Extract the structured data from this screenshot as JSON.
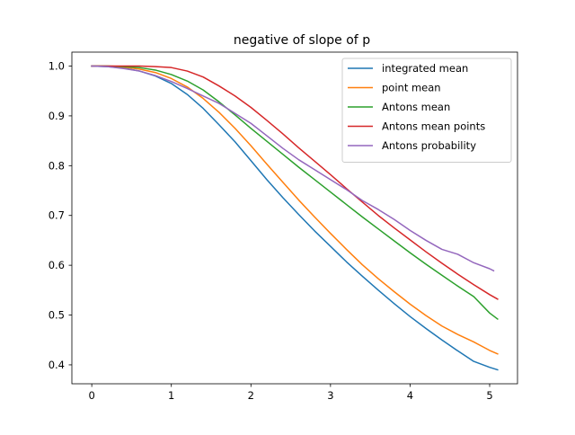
{
  "chart_data": {
    "type": "line",
    "title": "negative of slope of p",
    "xlabel": "",
    "ylabel": "",
    "xlim": [
      -0.25,
      5.35
    ],
    "ylim": [
      0.362,
      1.028
    ],
    "xticks": [
      0,
      1,
      2,
      3,
      4,
      5
    ],
    "xtick_labels": [
      "0",
      "1",
      "2",
      "3",
      "4",
      "5"
    ],
    "yticks": [
      0.4,
      0.5,
      0.6,
      0.7,
      0.8,
      0.9,
      1.0
    ],
    "ytick_labels": [
      "0.4",
      "0.5",
      "0.6",
      "0.7",
      "0.8",
      "0.9",
      "1.0"
    ],
    "grid": false,
    "legend_position": "top-right",
    "series": [
      {
        "name": "integrated mean",
        "color": "#1f77b4",
        "x": [
          0,
          0.2,
          0.4,
          0.6,
          0.8,
          1.0,
          1.2,
          1.4,
          1.6,
          1.8,
          2.0,
          2.2,
          2.4,
          2.6,
          2.8,
          3.0,
          3.2,
          3.4,
          3.6,
          3.8,
          4.0,
          4.2,
          4.4,
          4.6,
          4.8,
          5.0,
          5.1
        ],
        "y": [
          1.0,
          0.999,
          0.996,
          0.99,
          0.98,
          0.965,
          0.943,
          0.915,
          0.882,
          0.848,
          0.81,
          0.772,
          0.736,
          0.702,
          0.669,
          0.638,
          0.607,
          0.578,
          0.55,
          0.523,
          0.497,
          0.473,
          0.45,
          0.428,
          0.407,
          0.395,
          0.39
        ]
      },
      {
        "name": "point mean",
        "color": "#ff7f0e",
        "x": [
          0,
          0.2,
          0.4,
          0.6,
          0.8,
          1.0,
          1.2,
          1.4,
          1.6,
          1.8,
          2.0,
          2.2,
          2.4,
          2.6,
          2.8,
          3.0,
          3.2,
          3.4,
          3.6,
          3.8,
          4.0,
          4.2,
          4.4,
          4.6,
          4.8,
          5.0,
          5.1
        ],
        "y": [
          1.0,
          1.0,
          0.998,
          0.994,
          0.987,
          0.975,
          0.958,
          0.935,
          0.907,
          0.875,
          0.84,
          0.803,
          0.767,
          0.731,
          0.697,
          0.664,
          0.632,
          0.601,
          0.573,
          0.547,
          0.522,
          0.499,
          0.478,
          0.461,
          0.446,
          0.429,
          0.422
        ]
      },
      {
        "name": "Antons mean",
        "color": "#2ca02c",
        "x": [
          0,
          0.2,
          0.4,
          0.6,
          0.8,
          1.0,
          1.2,
          1.4,
          1.6,
          1.8,
          2.0,
          2.2,
          2.4,
          2.6,
          2.8,
          3.0,
          3.2,
          3.4,
          3.6,
          3.8,
          4.0,
          4.2,
          4.4,
          4.6,
          4.8,
          5.0,
          5.1
        ],
        "y": [
          1.0,
          1.0,
          0.999,
          0.997,
          0.992,
          0.983,
          0.97,
          0.952,
          0.928,
          0.902,
          0.875,
          0.849,
          0.823,
          0.797,
          0.772,
          0.747,
          0.722,
          0.697,
          0.673,
          0.649,
          0.625,
          0.602,
          0.58,
          0.558,
          0.537,
          0.504,
          0.492
        ]
      },
      {
        "name": "Antons mean points",
        "color": "#d62728",
        "x": [
          0,
          0.2,
          0.4,
          0.6,
          0.8,
          1.0,
          1.2,
          1.4,
          1.6,
          1.8,
          2.0,
          2.2,
          2.4,
          2.6,
          2.8,
          3.0,
          3.2,
          3.4,
          3.6,
          3.8,
          4.0,
          4.2,
          4.4,
          4.6,
          4.8,
          5.0,
          5.1
        ],
        "y": [
          1.0,
          1.0,
          1.0,
          1.0,
          0.999,
          0.997,
          0.99,
          0.978,
          0.96,
          0.94,
          0.917,
          0.891,
          0.864,
          0.836,
          0.809,
          0.782,
          0.754,
          0.727,
          0.7,
          0.675,
          0.651,
          0.627,
          0.604,
          0.582,
          0.561,
          0.541,
          0.532
        ]
      },
      {
        "name": "Antons probability",
        "color": "#9467bd",
        "x": [
          0,
          0.2,
          0.4,
          0.6,
          0.8,
          1.0,
          1.2,
          1.4,
          1.6,
          1.8,
          2.0,
          2.2,
          2.4,
          2.6,
          2.8,
          3.0,
          3.2,
          3.4,
          3.6,
          3.8,
          4.0,
          4.2,
          4.4,
          4.6,
          4.8,
          5.0,
          5.05
        ],
        "y": [
          1.0,
          0.999,
          0.995,
          0.99,
          0.981,
          0.969,
          0.955,
          0.94,
          0.925,
          0.905,
          0.885,
          0.86,
          0.835,
          0.812,
          0.792,
          0.772,
          0.752,
          0.73,
          0.712,
          0.692,
          0.67,
          0.65,
          0.632,
          0.622,
          0.605,
          0.593,
          0.589
        ]
      }
    ]
  }
}
